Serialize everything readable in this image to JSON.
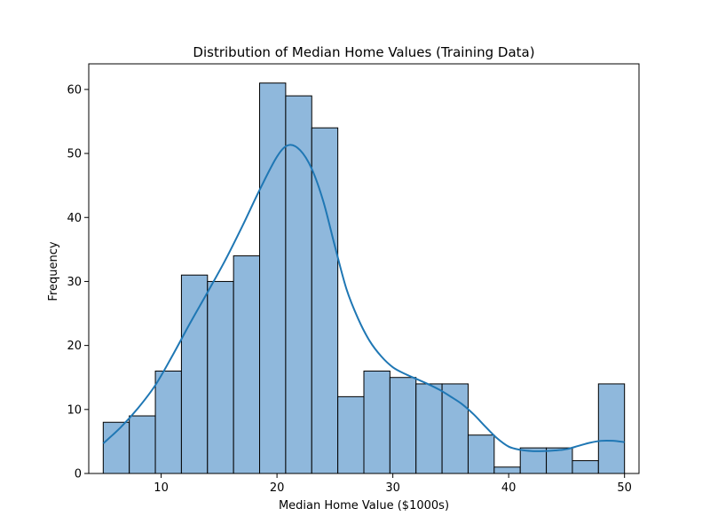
{
  "chart_data": {
    "type": "bar",
    "title": "Distribution of Median Home Values (Training Data)",
    "xlabel": "Median Home Value ($1000s)",
    "ylabel": "Frequency",
    "xlim": [
      3.75,
      51.25
    ],
    "ylim": [
      0,
      64
    ],
    "xticks": [
      10,
      20,
      30,
      40,
      50
    ],
    "yticks": [
      0,
      10,
      20,
      30,
      40,
      50,
      60
    ],
    "bin_edges": [
      5,
      7.25,
      9.5,
      11.75,
      14,
      16.25,
      18.5,
      20.75,
      23,
      25.25,
      27.5,
      29.75,
      32,
      34.25,
      36.5,
      38.75,
      41,
      43.25,
      45.5,
      47.75,
      50
    ],
    "values": [
      8,
      9,
      16,
      31,
      30,
      34,
      61,
      59,
      54,
      12,
      16,
      15,
      14,
      14,
      6,
      1,
      4,
      4,
      2,
      14
    ],
    "kde": {
      "x": [
        5,
        6.5,
        8,
        9.5,
        11,
        12.5,
        14,
        15.5,
        17,
        18.5,
        20,
        21,
        22,
        23,
        24,
        25,
        26,
        27,
        28,
        29,
        30,
        31,
        32,
        33,
        34,
        35,
        36,
        37,
        38,
        39,
        40,
        41,
        42,
        43,
        44,
        45,
        46,
        47,
        48,
        49,
        50
      ],
      "y": [
        4.7,
        7.2,
        10.2,
        13.8,
        18.5,
        23.5,
        28.3,
        33.2,
        38.6,
        44.3,
        49.5,
        51.3,
        50.5,
        47.6,
        42.5,
        35.5,
        28.8,
        24.2,
        20.7,
        18.3,
        16.6,
        15.6,
        14.8,
        14.0,
        13.1,
        12.0,
        10.8,
        9.2,
        7.3,
        5.5,
        4.2,
        3.7,
        3.5,
        3.5,
        3.6,
        3.8,
        4.3,
        4.8,
        5.1,
        5.1,
        4.9
      ]
    },
    "colors": {
      "bar_fill": "#8fb8dc",
      "bar_edge": "#000000",
      "kde_line": "#1f77b4"
    },
    "grid": false,
    "legend": "none"
  }
}
